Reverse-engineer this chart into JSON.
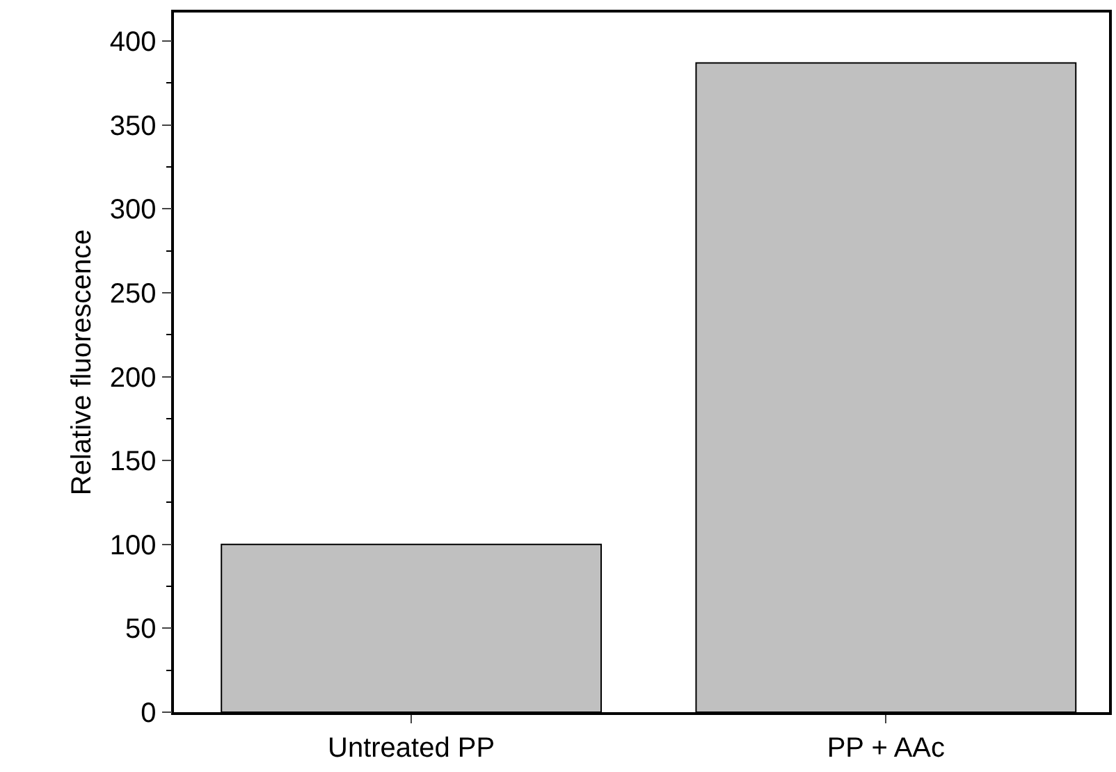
{
  "chart_data": {
    "type": "bar",
    "ylabel": "Relative fluorescence",
    "categories": [
      "Untreated PP",
      "PP + AAc"
    ],
    "values": [
      100,
      387
    ],
    "color": "#c0c0c0",
    "ylim": [
      0,
      417
    ],
    "yticks": [
      0,
      50,
      100,
      150,
      200,
      250,
      300,
      350,
      400
    ]
  }
}
